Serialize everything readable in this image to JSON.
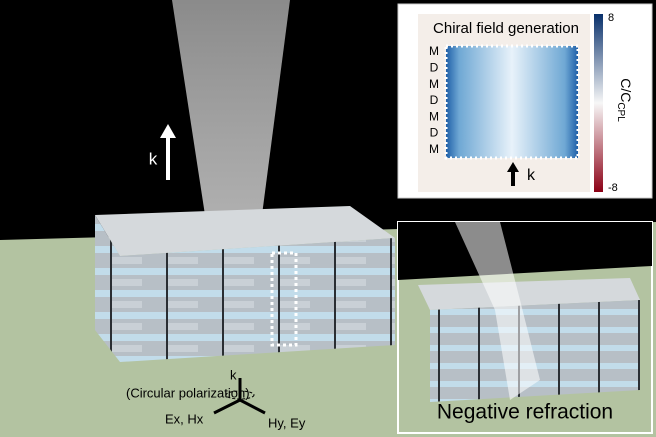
{
  "beam_label": "k",
  "inset_top": {
    "title": "Chiral field generation",
    "layer_labels": [
      "M",
      "D",
      "M",
      "D",
      "M",
      "D",
      "M"
    ],
    "colorbar": {
      "label": "C/C",
      "label_subscript": "CPL",
      "max": 8,
      "min": -8
    },
    "arrow_label": "k"
  },
  "axes": {
    "polarization": "(Circular polarization)",
    "k": "k",
    "left": "Ex, Hx",
    "right": "Hy, Ey"
  },
  "inset_bottom": {
    "caption": "Negative refraction"
  }
}
